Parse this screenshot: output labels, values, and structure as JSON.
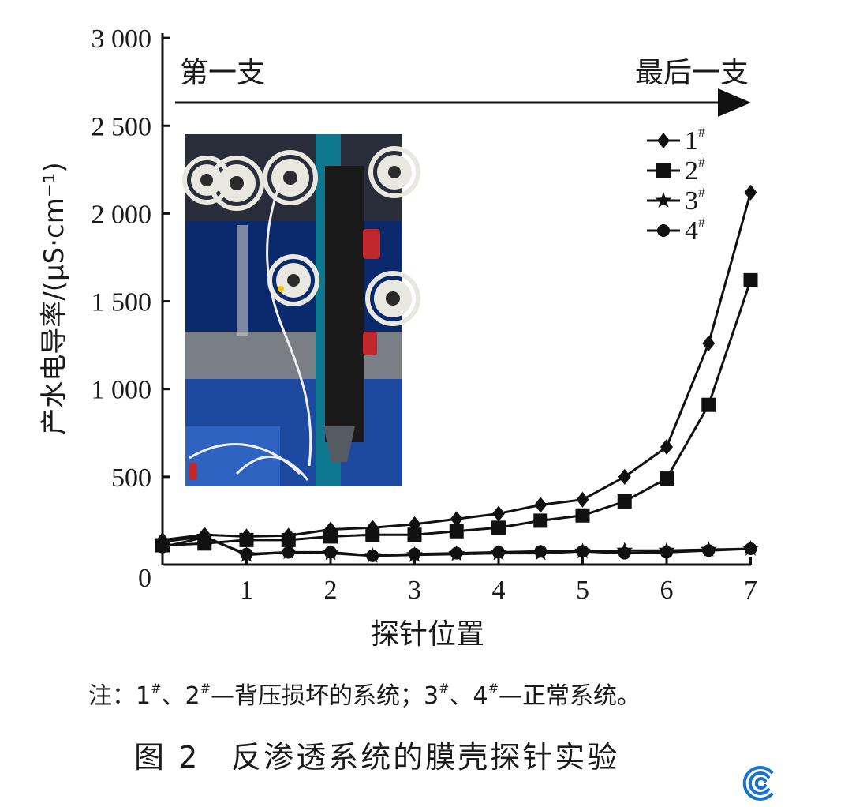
{
  "chart_data": {
    "type": "line",
    "ylabel": "产水电导率/(μS·cm⁻¹)",
    "xlabel": "探针位置",
    "xlim": [
      0,
      7
    ],
    "ylim": [
      0,
      3000
    ],
    "xticks": [
      "1",
      "2",
      "3",
      "4",
      "5",
      "6",
      "7"
    ],
    "yticks": [
      "0",
      "500",
      "1 000",
      "1 500",
      "2 000",
      "2 500",
      "3 000"
    ],
    "annotation_start": "第一支",
    "annotation_end": "最后一支",
    "grid": false,
    "legend_position": "top-right",
    "inset_photo": "reverse osmosis membrane housings with probe tube",
    "x": [
      0,
      0.5,
      1,
      1.5,
      2,
      2.5,
      3,
      3.5,
      4,
      4.5,
      5,
      5.5,
      6,
      6.5,
      7
    ],
    "series": [
      {
        "name": "1#",
        "marker": "diamond",
        "values": [
          140,
          170,
          160,
          165,
          200,
          210,
          230,
          260,
          290,
          340,
          370,
          500,
          670,
          1260,
          2120
        ]
      },
      {
        "name": "2#",
        "marker": "square",
        "values": [
          110,
          120,
          140,
          140,
          160,
          170,
          170,
          190,
          210,
          250,
          280,
          360,
          490,
          910,
          1620
        ]
      },
      {
        "name": "3#",
        "marker": "star",
        "values": [
          130,
          160,
          55,
          70,
          65,
          50,
          55,
          60,
          65,
          65,
          75,
          80,
          80,
          85,
          90
        ]
      },
      {
        "name": "4#",
        "marker": "circle",
        "values": [
          100,
          155,
          60,
          70,
          70,
          50,
          60,
          65,
          70,
          75,
          75,
          65,
          70,
          80,
          90
        ]
      }
    ]
  },
  "caption": {
    "note_prefix": "注：",
    "s1": "1",
    "s2": "2",
    "s3": "3",
    "s4": "4",
    "sup": "#",
    "sep": "、",
    "damaged_text": "—背压损坏的系统；",
    "normal_text": "—正常系统。",
    "figure_number": "图 2",
    "figure_title": "反渗透系统的膜壳探针实验"
  },
  "colors": {
    "line": "#111111",
    "logo_blue": "#1a73c9",
    "photo_dark_blue": "#0b2a6e",
    "photo_frame": "#0e7890"
  }
}
